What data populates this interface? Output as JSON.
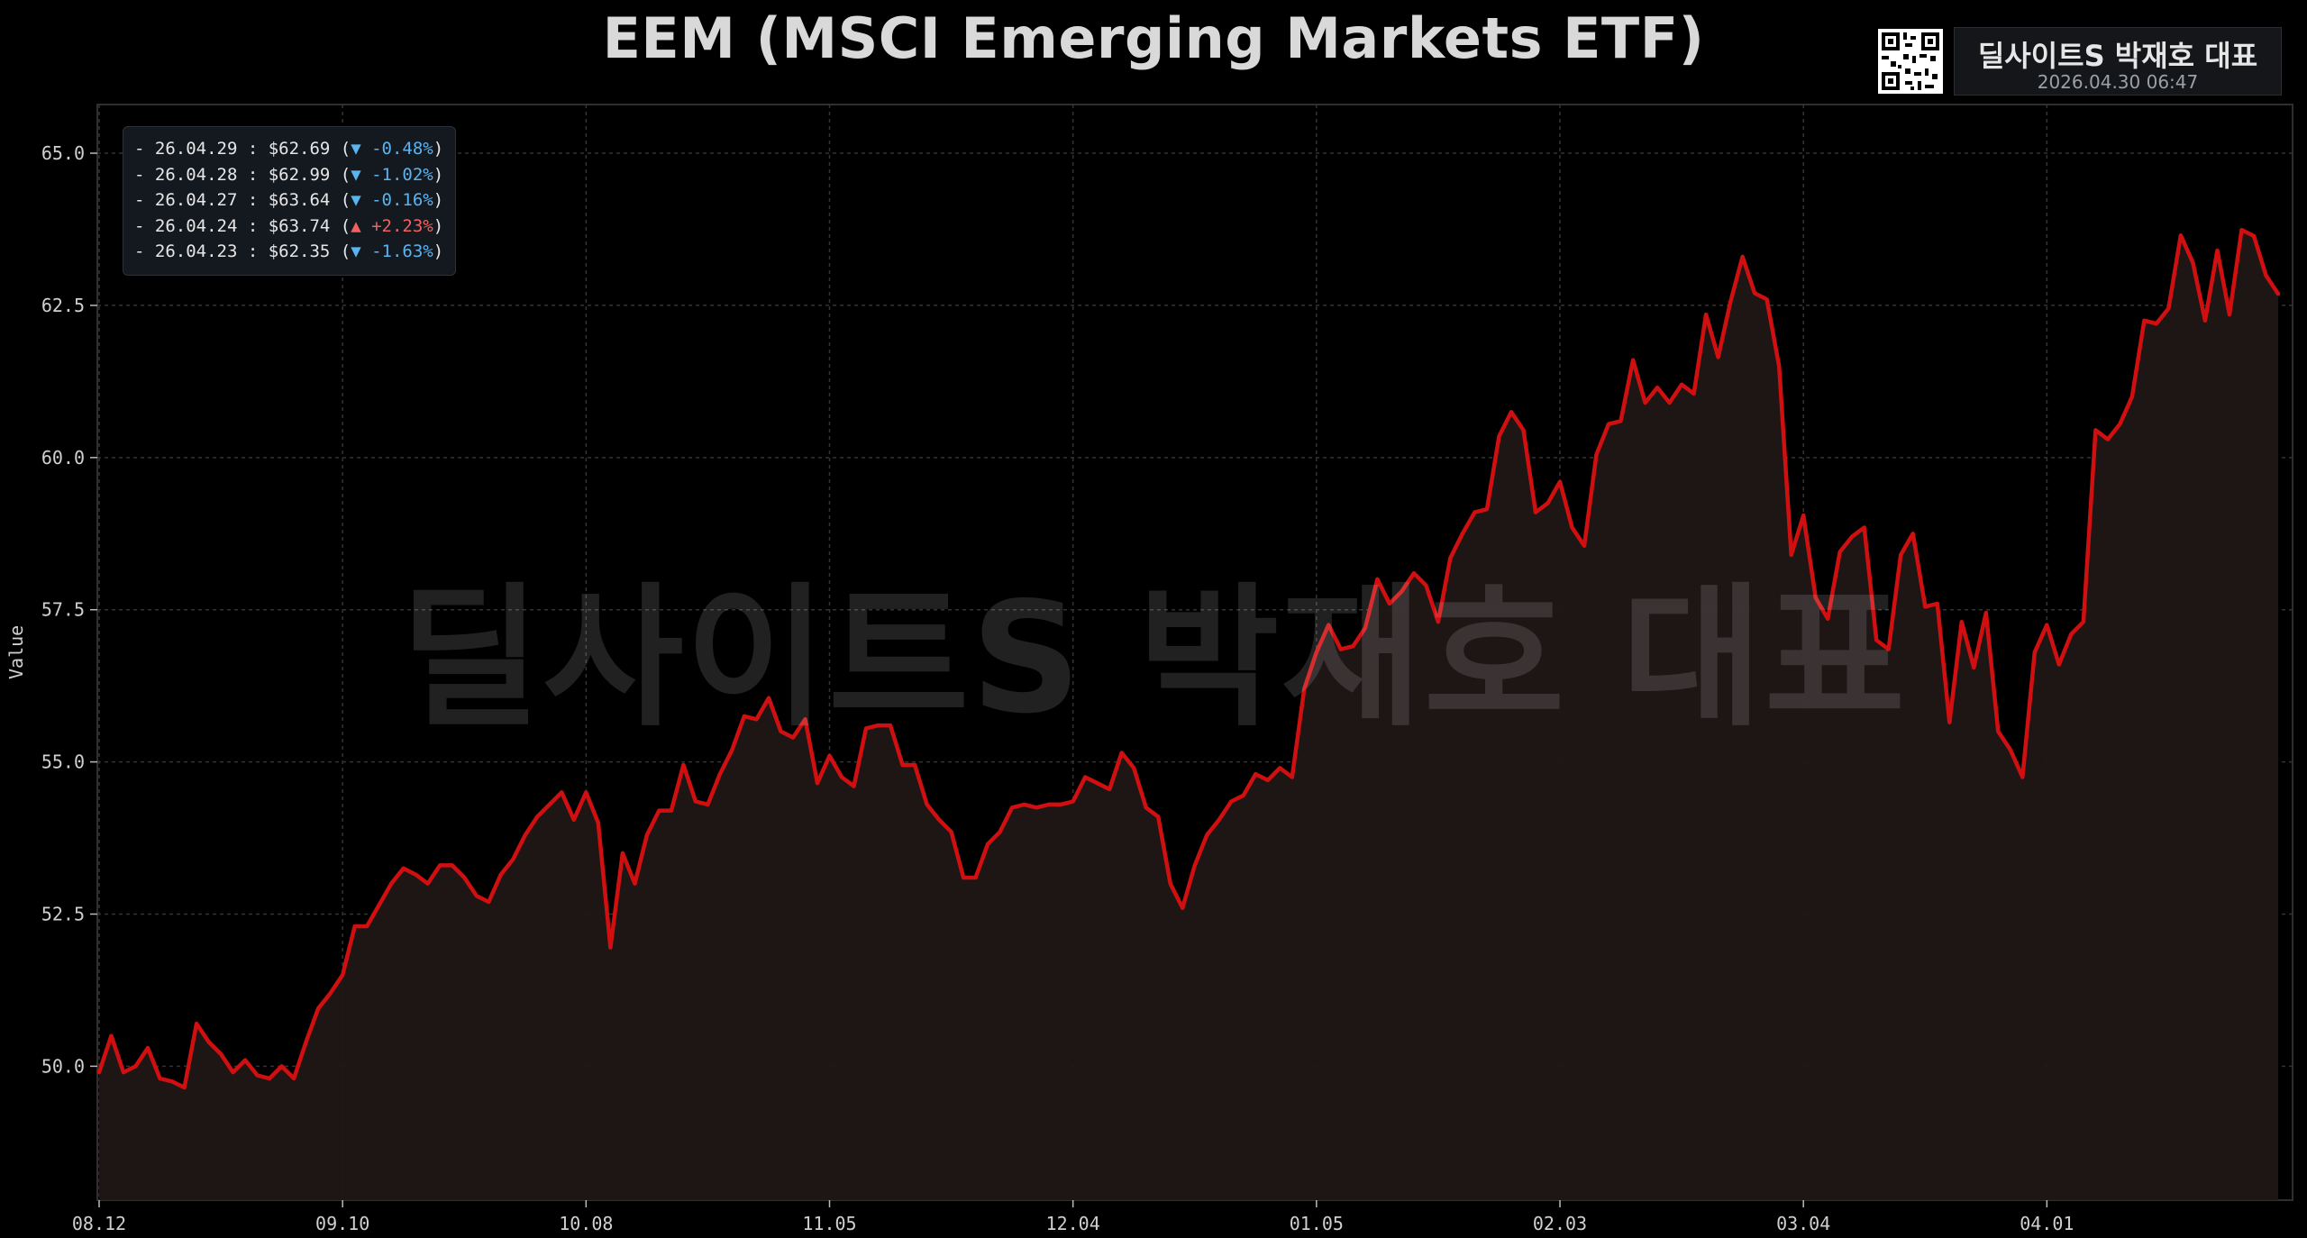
{
  "title": "EEM (MSCI Emerging Markets ETF)",
  "badge": {
    "name": "딜사이트S 박재호 대표",
    "timestamp": "2026.04.30 06:47"
  },
  "watermark": "딜사이트S 박재호 대표",
  "colors": {
    "line": "#d01010",
    "fill": "#201616",
    "background": "#000000",
    "grid": "#333333",
    "down": "#5ab4f0",
    "up": "#f06262"
  },
  "legend": [
    {
      "date": "26.04.29",
      "price": "$62.69",
      "change": "▼ -0.48%",
      "dir": "down"
    },
    {
      "date": "26.04.28",
      "price": "$62.99",
      "change": "▼ -1.02%",
      "dir": "down"
    },
    {
      "date": "26.04.27",
      "price": "$63.64",
      "change": "▼ -0.16%",
      "dir": "down"
    },
    {
      "date": "26.04.24",
      "price": "$63.74",
      "change": "▲ +2.23%",
      "dir": "up"
    },
    {
      "date": "26.04.23",
      "price": "$62.35",
      "change": "▼ -1.63%",
      "dir": "down"
    }
  ],
  "chart_data": {
    "type": "area",
    "title": "EEM (MSCI Emerging Markets ETF)",
    "ylabel": "Value",
    "xlabel": "",
    "ylim": [
      47.8,
      65.8
    ],
    "yticks": [
      50.0,
      52.5,
      55.0,
      57.5,
      60.0,
      62.5,
      65.0
    ],
    "ytick_labels": [
      "50.0",
      "52.5",
      "55.0",
      "57.5",
      "60.0",
      "62.5",
      "65.0"
    ],
    "xticks": [
      {
        "index": 0,
        "label": "08.12"
      },
      {
        "index": 20,
        "label": "09.10"
      },
      {
        "index": 40,
        "label": "10.08"
      },
      {
        "index": 60,
        "label": "11.05"
      },
      {
        "index": 80,
        "label": "12.04"
      },
      {
        "index": 100,
        "label": "01.05"
      },
      {
        "index": 120,
        "label": "02.03"
      },
      {
        "index": 140,
        "label": "03.04"
      },
      {
        "index": 160,
        "label": "04.01"
      }
    ],
    "grid": true,
    "legend_position": "top-left",
    "series": [
      {
        "values": [
          49.9,
          50.5,
          49.9,
          50.0,
          50.3,
          49.8,
          49.75,
          49.65,
          50.7,
          50.4,
          50.2,
          49.9,
          50.1,
          49.85,
          49.8,
          50.0,
          49.8,
          50.4,
          50.95,
          51.2,
          51.5,
          52.3,
          52.3,
          52.65,
          53.0,
          53.25,
          53.15,
          53.0,
          53.3,
          53.3,
          53.1,
          52.8,
          52.7,
          53.15,
          53.4,
          53.8,
          54.1,
          54.3,
          54.5,
          54.05,
          54.5,
          54.0,
          51.95,
          53.5,
          53.0,
          53.8,
          54.2,
          54.2,
          54.95,
          54.35,
          54.3,
          54.8,
          55.2,
          55.75,
          55.7,
          56.05,
          55.5,
          55.4,
          55.7,
          54.65,
          55.1,
          54.75,
          54.6,
          55.55,
          55.6,
          55.6,
          54.95,
          54.95,
          54.3,
          54.05,
          53.85,
          53.1,
          53.1,
          53.65,
          53.85,
          54.25,
          54.3,
          54.25,
          54.3,
          54.3,
          54.35,
          54.75,
          54.65,
          54.55,
          55.15,
          54.9,
          54.25,
          54.1,
          53.0,
          52.6,
          53.3,
          53.8,
          54.05,
          54.35,
          54.45,
          54.8,
          54.7,
          54.9,
          54.75,
          56.2,
          56.8,
          57.25,
          56.85,
          56.9,
          57.2,
          58.0,
          57.6,
          57.8,
          58.1,
          57.9,
          57.3,
          58.35,
          58.75,
          59.1,
          59.15,
          60.35,
          60.75,
          60.45,
          59.1,
          59.25,
          59.6,
          58.85,
          58.55,
          60.05,
          60.55,
          60.6,
          61.6,
          60.9,
          61.15,
          60.9,
          61.2,
          61.05,
          62.35,
          61.65,
          62.55,
          63.3,
          62.7,
          62.6,
          61.5,
          58.4,
          59.05,
          57.7,
          57.35,
          58.45,
          58.7,
          58.85,
          57.0,
          56.85,
          58.4,
          58.75,
          57.55,
          57.6,
          55.65,
          57.3,
          56.55,
          57.45,
          55.5,
          55.2,
          54.75,
          56.8,
          57.25,
          56.6,
          57.1,
          57.3,
          60.45,
          60.3,
          60.55,
          61.0,
          62.25,
          62.2,
          62.45,
          63.65,
          63.2,
          62.25,
          63.4,
          62.35,
          63.74,
          63.64,
          62.99,
          62.69
        ]
      }
    ]
  }
}
